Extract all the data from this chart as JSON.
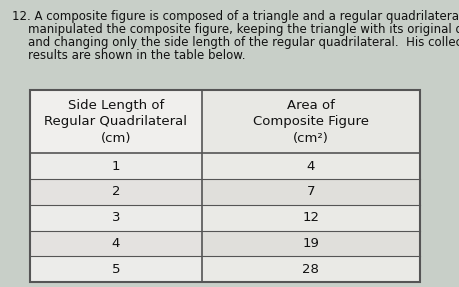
{
  "question_number": "12.",
  "question_text_lines": [
    "A composite figure is composed of a triangle and a regular quadrilateral.  Alex",
    "manipulated the composite figure, keeping the triangle with its original dimensions",
    "and changing only the side length of the regular quadrilateral.  His collected data",
    "results are shown in the table below."
  ],
  "col1_header_lines": [
    "Side Length of",
    "Regular Quadrilateral",
    "(cm)"
  ],
  "col2_header_lines": [
    "Area of",
    "Composite Figure",
    "(cm²)"
  ],
  "col1_data": [
    "1",
    "2",
    "3",
    "4",
    "5"
  ],
  "col2_data": [
    "4",
    "7",
    "12",
    "19",
    "28"
  ],
  "background_color": "#c8cfc8",
  "table_bg_col1": "#f0efed",
  "table_bg_col2": "#e8e8e4",
  "table_header_bg": "#dddbd8",
  "text_color": "#111111",
  "border_color": "#555555",
  "font_size_question": 8.5,
  "font_size_table_header": 9.5,
  "font_size_table_data": 9.5
}
